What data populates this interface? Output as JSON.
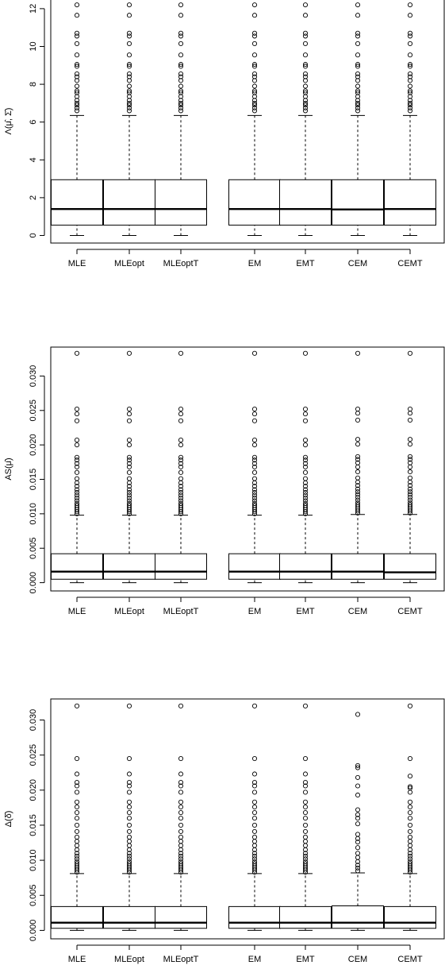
{
  "chart_data": [
    {
      "type": "box",
      "ylabel": "Λ(μ̂, Σ̂)",
      "categories": [
        "MLE",
        "MLEopt",
        "MLEoptT",
        "EM",
        "EMT",
        "CEM",
        "CEMT"
      ],
      "yticks": [
        0,
        2,
        4,
        6,
        8,
        10,
        12
      ],
      "ylim": [
        -0.4,
        12.5
      ],
      "boxes": [
        {
          "label": "MLE",
          "min": 0.0,
          "q1": 0.55,
          "median": 1.4,
          "q3": 2.95,
          "whisker_high": 6.35,
          "outliers": [
            6.6,
            6.75,
            6.9,
            7.0,
            7.15,
            7.35,
            7.55,
            7.65,
            7.9,
            8.2,
            8.4,
            8.55,
            8.95,
            9.05,
            9.55,
            10.15,
            10.55,
            10.7,
            11.65,
            12.2
          ]
        },
        {
          "label": "MLEopt",
          "min": 0.0,
          "q1": 0.55,
          "median": 1.4,
          "q3": 2.95,
          "whisker_high": 6.35,
          "outliers": [
            6.6,
            6.75,
            6.9,
            7.0,
            7.15,
            7.35,
            7.55,
            7.65,
            7.9,
            8.2,
            8.4,
            8.55,
            8.95,
            9.05,
            9.55,
            10.15,
            10.55,
            10.7,
            11.65,
            12.2
          ]
        },
        {
          "label": "MLEoptT",
          "min": 0.0,
          "q1": 0.55,
          "median": 1.4,
          "q3": 2.95,
          "whisker_high": 6.35,
          "outliers": [
            6.6,
            6.75,
            6.9,
            7.0,
            7.15,
            7.35,
            7.55,
            7.65,
            7.9,
            8.2,
            8.4,
            8.55,
            8.95,
            9.05,
            9.55,
            10.15,
            10.55,
            10.7,
            11.65,
            12.2
          ]
        },
        {
          "label": "EM",
          "min": 0.0,
          "q1": 0.55,
          "median": 1.4,
          "q3": 2.95,
          "whisker_high": 6.35,
          "outliers": [
            6.6,
            6.75,
            6.9,
            7.0,
            7.15,
            7.35,
            7.55,
            7.65,
            7.9,
            8.2,
            8.4,
            8.55,
            8.95,
            9.05,
            9.55,
            10.15,
            10.55,
            10.7,
            11.65,
            12.2
          ]
        },
        {
          "label": "EMT",
          "min": 0.0,
          "q1": 0.55,
          "median": 1.4,
          "q3": 2.95,
          "whisker_high": 6.35,
          "outliers": [
            6.6,
            6.75,
            6.9,
            7.0,
            7.15,
            7.35,
            7.55,
            7.65,
            7.9,
            8.2,
            8.4,
            8.55,
            8.95,
            9.05,
            9.55,
            10.15,
            10.55,
            10.7,
            11.65,
            12.2
          ]
        },
        {
          "label": "CEM",
          "min": 0.0,
          "q1": 0.55,
          "median": 1.38,
          "q3": 2.95,
          "whisker_high": 6.35,
          "outliers": [
            6.6,
            6.75,
            6.9,
            7.0,
            7.15,
            7.35,
            7.55,
            7.65,
            7.9,
            8.2,
            8.4,
            8.55,
            8.95,
            9.05,
            9.55,
            10.15,
            10.55,
            10.7,
            11.65,
            12.2
          ]
        },
        {
          "label": "CEMT",
          "min": 0.0,
          "q1": 0.55,
          "median": 1.4,
          "q3": 2.95,
          "whisker_high": 6.35,
          "outliers": [
            6.6,
            6.75,
            6.9,
            7.0,
            7.15,
            7.35,
            7.55,
            7.65,
            7.9,
            8.2,
            8.4,
            8.55,
            8.95,
            9.05,
            9.55,
            10.15,
            10.55,
            10.7,
            11.65,
            12.2
          ]
        }
      ]
    },
    {
      "type": "box",
      "ylabel": "AS(μ̂)",
      "categories": [
        "MLE",
        "MLEopt",
        "MLEoptT",
        "EM",
        "EMT",
        "CEM",
        "CEMT"
      ],
      "yticks": [
        "0.000",
        "0.005",
        "0.010",
        "0.015",
        "0.020",
        "0.025",
        "0.030"
      ],
      "ylim": [
        -0.0012,
        0.0342
      ],
      "boxes": [
        {
          "label": "MLE",
          "min": 0.0,
          "q1": 0.0005,
          "median": 0.0016,
          "q3": 0.0042,
          "whisker_high": 0.0098,
          "outliers": [
            0.01,
            0.0103,
            0.0106,
            0.0109,
            0.0112,
            0.0115,
            0.0119,
            0.0123,
            0.0127,
            0.0131,
            0.0135,
            0.014,
            0.0145,
            0.0151,
            0.016,
            0.0168,
            0.0173,
            0.0178,
            0.0182,
            0.02,
            0.0207,
            0.0235,
            0.0245,
            0.0252,
            0.0333
          ]
        },
        {
          "label": "MLEopt",
          "min": 0.0,
          "q1": 0.0005,
          "median": 0.0016,
          "q3": 0.0042,
          "whisker_high": 0.0098,
          "outliers": [
            0.01,
            0.0103,
            0.0106,
            0.0109,
            0.0112,
            0.0115,
            0.0119,
            0.0123,
            0.0127,
            0.0131,
            0.0135,
            0.014,
            0.0145,
            0.0151,
            0.016,
            0.0168,
            0.0173,
            0.0178,
            0.0182,
            0.02,
            0.0207,
            0.0235,
            0.0245,
            0.0252,
            0.0333
          ]
        },
        {
          "label": "MLEoptT",
          "min": 0.0,
          "q1": 0.0005,
          "median": 0.0016,
          "q3": 0.0042,
          "whisker_high": 0.0098,
          "outliers": [
            0.01,
            0.0103,
            0.0106,
            0.0109,
            0.0112,
            0.0115,
            0.0119,
            0.0123,
            0.0127,
            0.0131,
            0.0135,
            0.014,
            0.0145,
            0.0151,
            0.016,
            0.0168,
            0.0173,
            0.0178,
            0.0182,
            0.02,
            0.0207,
            0.0235,
            0.0245,
            0.0252,
            0.0333
          ]
        },
        {
          "label": "EM",
          "min": 0.0,
          "q1": 0.0005,
          "median": 0.0016,
          "q3": 0.0042,
          "whisker_high": 0.0098,
          "outliers": [
            0.01,
            0.0103,
            0.0106,
            0.0109,
            0.0112,
            0.0115,
            0.0119,
            0.0123,
            0.0127,
            0.0131,
            0.0135,
            0.014,
            0.0145,
            0.0151,
            0.016,
            0.0168,
            0.0173,
            0.0178,
            0.0182,
            0.02,
            0.0207,
            0.0235,
            0.0245,
            0.0252,
            0.0333
          ]
        },
        {
          "label": "EMT",
          "min": 0.0,
          "q1": 0.0005,
          "median": 0.0016,
          "q3": 0.0042,
          "whisker_high": 0.0098,
          "outliers": [
            0.01,
            0.0103,
            0.0106,
            0.0109,
            0.0112,
            0.0115,
            0.0119,
            0.0123,
            0.0127,
            0.0131,
            0.0135,
            0.014,
            0.0145,
            0.0151,
            0.016,
            0.0168,
            0.0173,
            0.0178,
            0.0182,
            0.02,
            0.0207,
            0.0235,
            0.0245,
            0.0252,
            0.0333
          ]
        },
        {
          "label": "CEM",
          "min": 0.0,
          "q1": 0.0005,
          "median": 0.0016,
          "q3": 0.0042,
          "whisker_high": 0.0099,
          "outliers": [
            0.0101,
            0.0104,
            0.0107,
            0.011,
            0.0113,
            0.0116,
            0.012,
            0.0124,
            0.0128,
            0.0132,
            0.0136,
            0.0141,
            0.0146,
            0.0152,
            0.0161,
            0.0168,
            0.0174,
            0.0179,
            0.0183,
            0.0201,
            0.0208,
            0.0236,
            0.0246,
            0.0252,
            0.0333
          ]
        },
        {
          "label": "CEMT",
          "min": 0.0,
          "q1": 0.0005,
          "median": 0.0015,
          "q3": 0.0042,
          "whisker_high": 0.0099,
          "outliers": [
            0.0101,
            0.0104,
            0.0107,
            0.011,
            0.0113,
            0.0116,
            0.012,
            0.0124,
            0.0128,
            0.0132,
            0.0136,
            0.0141,
            0.0146,
            0.0152,
            0.0161,
            0.0168,
            0.0174,
            0.0179,
            0.0183,
            0.0201,
            0.0208,
            0.0236,
            0.0246,
            0.0252,
            0.0333
          ]
        }
      ]
    },
    {
      "type": "box",
      "ylabel": "Δ(δ̂)",
      "categories": [
        "MLE",
        "MLEopt",
        "MLEoptT",
        "EM",
        "EMT",
        "CEM",
        "CEMT"
      ],
      "yticks": [
        "0.000",
        "0.005",
        "0.010",
        "0.015",
        "0.020",
        "0.025",
        "0.030"
      ],
      "ylim": [
        -0.0012,
        0.033
      ],
      "boxes": [
        {
          "label": "MLE",
          "min": 0.0,
          "q1": 0.0003,
          "median": 0.0011,
          "q3": 0.0034,
          "whisker_high": 0.0081,
          "outliers": [
            0.0083,
            0.0086,
            0.0089,
            0.0092,
            0.0095,
            0.0098,
            0.0102,
            0.0106,
            0.011,
            0.0115,
            0.0121,
            0.0127,
            0.0133,
            0.0141,
            0.015,
            0.016,
            0.0168,
            0.0176,
            0.0183,
            0.0197,
            0.0206,
            0.0211,
            0.0223,
            0.0245,
            0.032
          ]
        },
        {
          "label": "MLEopt",
          "min": 0.0,
          "q1": 0.0003,
          "median": 0.0011,
          "q3": 0.0034,
          "whisker_high": 0.0081,
          "outliers": [
            0.0083,
            0.0086,
            0.0089,
            0.0092,
            0.0095,
            0.0098,
            0.0102,
            0.0106,
            0.011,
            0.0115,
            0.0121,
            0.0127,
            0.0133,
            0.0141,
            0.015,
            0.016,
            0.0168,
            0.0176,
            0.0183,
            0.0197,
            0.0206,
            0.0211,
            0.0223,
            0.0245,
            0.032
          ]
        },
        {
          "label": "MLEoptT",
          "min": 0.0,
          "q1": 0.0003,
          "median": 0.0011,
          "q3": 0.0034,
          "whisker_high": 0.0081,
          "outliers": [
            0.0083,
            0.0086,
            0.0089,
            0.0092,
            0.0095,
            0.0098,
            0.0102,
            0.0106,
            0.011,
            0.0115,
            0.0121,
            0.0127,
            0.0133,
            0.0141,
            0.015,
            0.016,
            0.0168,
            0.0176,
            0.0183,
            0.0197,
            0.0206,
            0.0211,
            0.0223,
            0.0245,
            0.032
          ]
        },
        {
          "label": "EM",
          "min": 0.0,
          "q1": 0.0003,
          "median": 0.0011,
          "q3": 0.0034,
          "whisker_high": 0.0081,
          "outliers": [
            0.0083,
            0.0086,
            0.0089,
            0.0092,
            0.0095,
            0.0098,
            0.0102,
            0.0106,
            0.011,
            0.0115,
            0.0121,
            0.0127,
            0.0133,
            0.0141,
            0.015,
            0.016,
            0.0168,
            0.0176,
            0.0183,
            0.0197,
            0.0206,
            0.0211,
            0.0223,
            0.0245,
            0.032
          ]
        },
        {
          "label": "EMT",
          "min": 0.0,
          "q1": 0.0003,
          "median": 0.0011,
          "q3": 0.0034,
          "whisker_high": 0.0081,
          "outliers": [
            0.0083,
            0.0086,
            0.0089,
            0.0092,
            0.0095,
            0.0098,
            0.0102,
            0.0106,
            0.011,
            0.0115,
            0.0121,
            0.0127,
            0.0133,
            0.0141,
            0.015,
            0.016,
            0.0168,
            0.0176,
            0.0183,
            0.0197,
            0.0206,
            0.0211,
            0.0223,
            0.0245,
            0.032
          ]
        },
        {
          "label": "CEM",
          "min": 0.0,
          "q1": 0.0003,
          "median": 0.0011,
          "q3": 0.0035,
          "whisker_high": 0.0082,
          "outliers": [
            0.0085,
            0.0089,
            0.0093,
            0.0098,
            0.0104,
            0.011,
            0.0118,
            0.0126,
            0.0131,
            0.0137,
            0.0152,
            0.016,
            0.0165,
            0.0172,
            0.0193,
            0.0206,
            0.0218,
            0.0232,
            0.0235,
            0.0308
          ]
        },
        {
          "label": "CEMT",
          "min": 0.0,
          "q1": 0.0003,
          "median": 0.0011,
          "q3": 0.0034,
          "whisker_high": 0.0081,
          "outliers": [
            0.0083,
            0.0086,
            0.0089,
            0.0092,
            0.0095,
            0.0098,
            0.0102,
            0.0106,
            0.011,
            0.0115,
            0.0121,
            0.0127,
            0.0133,
            0.0141,
            0.015,
            0.016,
            0.0168,
            0.0176,
            0.0183,
            0.0197,
            0.0203,
            0.0205,
            0.022,
            0.0245,
            0.032
          ]
        }
      ]
    }
  ]
}
